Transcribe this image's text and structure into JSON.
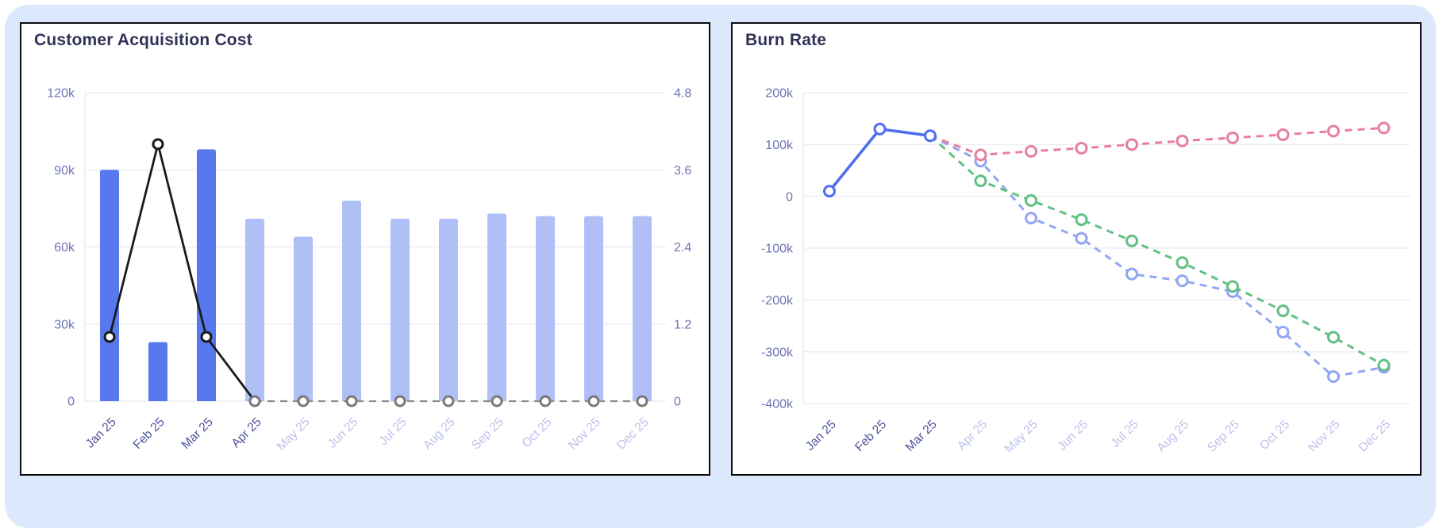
{
  "page": {
    "background_color": "#dce8fb",
    "card_background": "#ffffff",
    "card_border_color": "#0c0c0c",
    "title_color": "#2f3257",
    "gridline_color": "#ededf9",
    "axis_line_color": "#e9ebf8",
    "y_tick_color": "#6d72b4",
    "x_tick_dark_color": "#4f549c",
    "x_tick_light_color": "#bdc1ec"
  },
  "chart_data": [
    {
      "type": "bar",
      "title": "Customer Acquisition Cost",
      "categories": [
        "Jan 25",
        "Feb 25",
        "Mar 25",
        "Apr 25",
        "May 25",
        "Jun 25",
        "Jul 25",
        "Aug 25",
        "Sep 25",
        "Oct 25",
        "Nov 25",
        "Dec 25"
      ],
      "x_label_dark_count": 4,
      "grid": true,
      "legend": "none",
      "axes": {
        "left": {
          "min": 0,
          "max": 120000,
          "tick_labels": [
            "120k",
            "90k",
            "60k",
            "30k",
            "0"
          ]
        },
        "right": {
          "min": 0,
          "max": 4.8,
          "tick_labels": [
            "4.8",
            "3.6",
            "2.4",
            "1.2",
            "0"
          ]
        }
      },
      "series": [
        {
          "name": "cac-actual-bars",
          "type": "bar",
          "axis": "left",
          "color": "#5878f0",
          "values": [
            90000,
            23000,
            98000,
            null,
            null,
            null,
            null,
            null,
            null,
            null,
            null,
            null
          ]
        },
        {
          "name": "cac-forecast-bars",
          "type": "bar",
          "axis": "left",
          "color": "#b1bff7",
          "values": [
            null,
            null,
            null,
            71000,
            64000,
            78000,
            71000,
            71000,
            73000,
            72000,
            72000,
            72000
          ]
        },
        {
          "name": "ratio-actual-line",
          "type": "line",
          "axis": "right",
          "color": "#1a1a1a",
          "marker_color": "#1a1a1a",
          "dash": false,
          "width": 2.8,
          "marker_radius": 6,
          "skip_last_marker": true,
          "values": [
            1.0,
            4.0,
            1.0,
            0,
            null,
            null,
            null,
            null,
            null,
            null,
            null,
            null
          ]
        },
        {
          "name": "ratio-forecast-line",
          "type": "line",
          "axis": "right",
          "color": "#8c8c8c",
          "marker_color": "#7a7a7a",
          "dash": true,
          "width": 2.2,
          "marker_radius": 6,
          "values": [
            null,
            null,
            null,
            0,
            0,
            0,
            0,
            0,
            0,
            0,
            0,
            0
          ]
        }
      ]
    },
    {
      "type": "line",
      "title": "Burn Rate",
      "categories": [
        "Jan 25",
        "Feb 25",
        "Mar 25",
        "Apr 25",
        "May 25",
        "Jun 25",
        "Jul 25",
        "Aug 25",
        "Sep 25",
        "Oct 25",
        "Nov 25",
        "Dec 25"
      ],
      "x_label_dark_count": 3,
      "grid": true,
      "legend": "none",
      "axes": {
        "left": {
          "min": -400000,
          "max": 200000,
          "tick_labels": [
            "200k",
            "100k",
            "0",
            "-100k",
            "-200k",
            "-300k",
            "-400k"
          ]
        }
      },
      "series": [
        {
          "name": "burn-forecast-lightblue",
          "type": "line",
          "axis": "left",
          "color": "#93a6f3",
          "dash": true,
          "width": 3,
          "marker_radius": 6.5,
          "skip_first_marker": true,
          "values": [
            null,
            null,
            117000,
            68000,
            -42000,
            -81000,
            -150000,
            -163000,
            -184000,
            -262000,
            -348000,
            -330000
          ]
        },
        {
          "name": "burn-forecast-green",
          "type": "line",
          "axis": "left",
          "color": "#63c083",
          "dash": true,
          "width": 3,
          "marker_radius": 6.5,
          "skip_first_marker": true,
          "values": [
            null,
            null,
            117000,
            30000,
            -8000,
            -45000,
            -86000,
            -128000,
            -174000,
            -221000,
            -272000,
            -326000
          ]
        },
        {
          "name": "burn-forecast-pink",
          "type": "line",
          "axis": "left",
          "color": "#e8809d",
          "dash": true,
          "width": 3,
          "marker_radius": 6.5,
          "skip_first_marker": true,
          "values": [
            null,
            null,
            117000,
            80000,
            87000,
            93000,
            100000,
            107000,
            113000,
            119000,
            126000,
            132000
          ]
        },
        {
          "name": "burn-actual",
          "type": "line",
          "axis": "left",
          "color": "#4e6ef2",
          "dash": false,
          "width": 3.6,
          "marker_radius": 6.5,
          "values": [
            10000,
            130000,
            117000,
            null,
            null,
            null,
            null,
            null,
            null,
            null,
            null,
            null
          ]
        }
      ]
    }
  ]
}
